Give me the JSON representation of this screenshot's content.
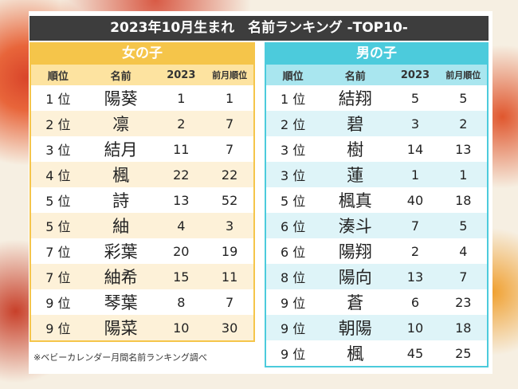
{
  "title": "2023年10月生まれ　名前ランキング -TOP10-",
  "headers": {
    "rank": "順位",
    "name": "名前",
    "year": "2023",
    "prev": "前月順位"
  },
  "girls": {
    "label": "女の子",
    "rows": [
      [
        "1 位",
        "陽葵",
        "1",
        "1"
      ],
      [
        "2 位",
        "凛",
        "2",
        "7"
      ],
      [
        "3 位",
        "結月",
        "11",
        "7"
      ],
      [
        "4 位",
        "楓",
        "22",
        "22"
      ],
      [
        "5 位",
        "詩",
        "13",
        "52"
      ],
      [
        "5 位",
        "紬",
        "4",
        "3"
      ],
      [
        "7 位",
        "彩葉",
        "20",
        "19"
      ],
      [
        "7 位",
        "紬希",
        "15",
        "11"
      ],
      [
        "9 位",
        "琴葉",
        "8",
        "7"
      ],
      [
        "9 位",
        "陽菜",
        "10",
        "30"
      ]
    ]
  },
  "boys": {
    "label": "男の子",
    "rows": [
      [
        "1 位",
        "結翔",
        "5",
        "5"
      ],
      [
        "2 位",
        "碧",
        "3",
        "2"
      ],
      [
        "3 位",
        "樹",
        "14",
        "13"
      ],
      [
        "3 位",
        "蓮",
        "1",
        "1"
      ],
      [
        "5 位",
        "楓真",
        "40",
        "18"
      ],
      [
        "6 位",
        "湊斗",
        "7",
        "5"
      ],
      [
        "6 位",
        "陽翔",
        "2",
        "4"
      ],
      [
        "8 位",
        "陽向",
        "13",
        "7"
      ],
      [
        "9 位",
        "蒼",
        "6",
        "23"
      ],
      [
        "9 位",
        "朝陽",
        "10",
        "18"
      ],
      [
        "9 位",
        "楓",
        "45",
        "25"
      ]
    ]
  },
  "note": "※ベビーカレンダー月間名前ランキング調べ",
  "colors": {
    "girls": "#f5c54a",
    "boys": "#4ccbdc",
    "title_bg": "#3d3d3d"
  }
}
